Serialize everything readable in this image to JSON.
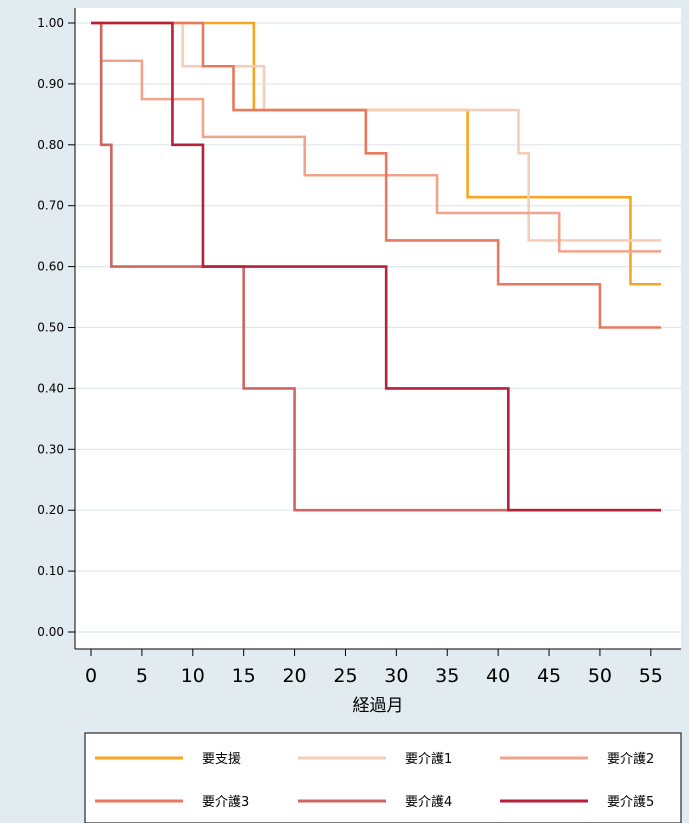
{
  "chart_data": {
    "type": "line",
    "step": true,
    "xlabel": "経過月",
    "ylabel": "",
    "xlim": [
      0,
      56
    ],
    "ylim": [
      0,
      1
    ],
    "x_ticks": [
      "0",
      "5",
      "10",
      "15",
      "20",
      "25",
      "30",
      "35",
      "40",
      "45",
      "50",
      "55"
    ],
    "y_ticks": [
      "0.00",
      "0.10",
      "0.20",
      "0.30",
      "0.40",
      "0.50",
      "0.60",
      "0.70",
      "0.80",
      "0.90",
      "1.00"
    ],
    "grid": true,
    "legend_position": "bottom",
    "series": [
      {
        "name": "要支援",
        "color": "#f5a623",
        "points": [
          [
            0,
            1.0
          ],
          [
            16,
            0.857
          ],
          [
            37,
            0.714
          ],
          [
            53,
            0.571
          ],
          [
            56,
            0.571
          ]
        ]
      },
      {
        "name": "要介護1",
        "color": "#f6cdb7",
        "points": [
          [
            0,
            1.0
          ],
          [
            9,
            0.929
          ],
          [
            17,
            0.857
          ],
          [
            42,
            0.786
          ],
          [
            43,
            0.643
          ],
          [
            56,
            0.643
          ]
        ]
      },
      {
        "name": "要介護2",
        "color": "#f0a38d",
        "points": [
          [
            0,
            1.0
          ],
          [
            1,
            0.938
          ],
          [
            5,
            0.875
          ],
          [
            11,
            0.813
          ],
          [
            21,
            0.75
          ],
          [
            34,
            0.688
          ],
          [
            46,
            0.625
          ],
          [
            56,
            0.625
          ]
        ]
      },
      {
        "name": "要介護3",
        "color": "#e8785e",
        "points": [
          [
            0,
            1.0
          ],
          [
            11,
            0.929
          ],
          [
            14,
            0.857
          ],
          [
            27,
            0.786
          ],
          [
            29,
            0.643
          ],
          [
            40,
            0.571
          ],
          [
            50,
            0.5
          ],
          [
            56,
            0.5
          ]
        ]
      },
      {
        "name": "要介護4",
        "color": "#cf6563",
        "points": [
          [
            0,
            1.0
          ],
          [
            1,
            0.8
          ],
          [
            2,
            0.6
          ],
          [
            15,
            0.4
          ],
          [
            20,
            0.2
          ],
          [
            56,
            0.2
          ]
        ]
      },
      {
        "name": "要介護5",
        "color": "#b5203d",
        "points": [
          [
            0,
            1.0
          ],
          [
            8,
            0.8
          ],
          [
            11,
            0.6
          ],
          [
            29,
            0.4
          ],
          [
            41,
            0.2
          ],
          [
            56,
            0.2
          ]
        ]
      }
    ]
  }
}
